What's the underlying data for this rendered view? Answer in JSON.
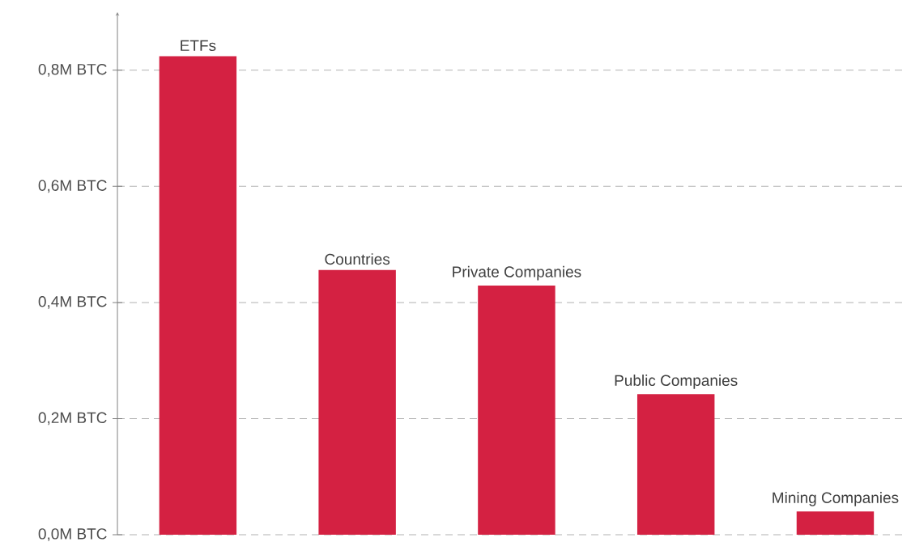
{
  "chart_data": {
    "type": "bar",
    "categories": [
      "ETFs",
      "Countries",
      "Private Companies",
      "Public Companies",
      "Mining Companies"
    ],
    "values": [
      0.824,
      0.456,
      0.429,
      0.242,
      0.04
    ],
    "color": "#d42142",
    "ylim": [
      0,
      0.9
    ],
    "yticks": [
      {
        "value": 0,
        "label": "0,0M BTC"
      },
      {
        "value": 0.2,
        "label": "0,2M BTC"
      },
      {
        "value": 0.4,
        "label": "0,4M BTC"
      },
      {
        "value": 0.6,
        "label": "0,6M BTC"
      },
      {
        "value": 0.8,
        "label": "0,8M BTC"
      }
    ],
    "grid": "y"
  }
}
